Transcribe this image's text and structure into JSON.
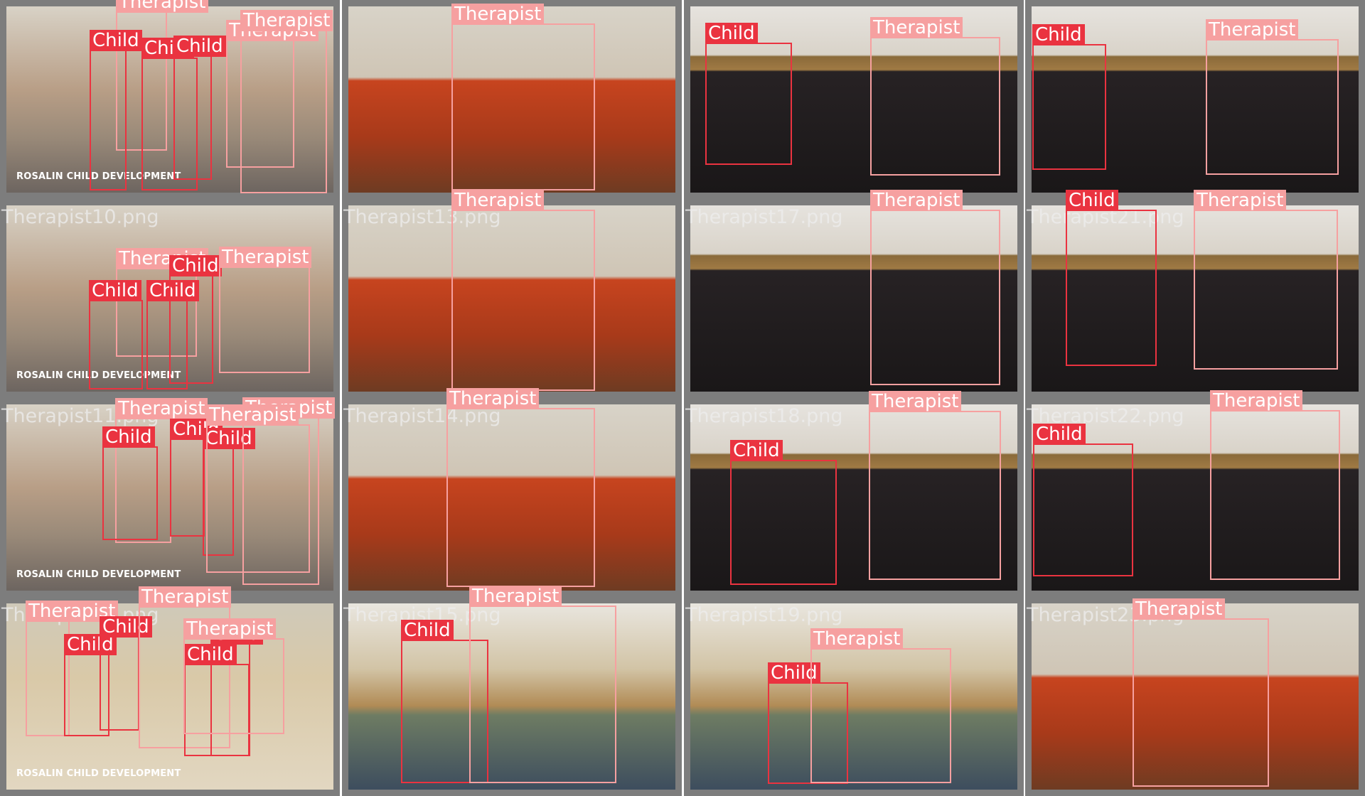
{
  "colors": {
    "background": "#ffffff",
    "tile_border": "#7d7d7d",
    "child_box": "#ea3340",
    "therapist_box": "#f6a0a0",
    "scene_indoor_room": "#b89e86",
    "scene_sofa_room": "#c7441f",
    "scene_playroom": "#272224",
    "scene_classroom": "#6e7c63",
    "scene_floor_room": "#d9c9a8"
  },
  "classes": {
    "child": "Child",
    "therapist": "Therapist"
  },
  "tiles": [
    {
      "filename": "",
      "watermark": "ROSALIN CHILD DEVELOPMENT",
      "scene": "indoor_room",
      "boxes": [
        {
          "cls": "therapist"
        },
        {
          "cls": "child"
        },
        {
          "cls": "child"
        },
        {
          "cls": "child"
        },
        {
          "cls": "therapist"
        },
        {
          "cls": "therapist"
        }
      ]
    },
    {
      "filename": "",
      "watermark": "",
      "scene": "sofa_room",
      "boxes": [
        {
          "cls": "therapist"
        }
      ]
    },
    {
      "filename": "",
      "watermark": "",
      "scene": "playroom",
      "boxes": [
        {
          "cls": "child"
        },
        {
          "cls": "therapist"
        }
      ]
    },
    {
      "filename": "",
      "watermark": "",
      "scene": "playroom",
      "boxes": [
        {
          "cls": "child"
        },
        {
          "cls": "therapist"
        }
      ]
    },
    {
      "filename": "Therapist10.png",
      "watermark": "ROSALIN CHILD DEVELOPMENT",
      "scene": "indoor_room",
      "boxes": [
        {
          "cls": "therapist"
        },
        {
          "cls": "child"
        },
        {
          "cls": "child"
        },
        {
          "cls": "child"
        },
        {
          "cls": "therapist"
        }
      ]
    },
    {
      "filename": "Therapist13.png",
      "watermark": "",
      "scene": "sofa_room",
      "boxes": [
        {
          "cls": "therapist"
        }
      ]
    },
    {
      "filename": "Therapist17.png",
      "watermark": "",
      "scene": "playroom",
      "boxes": [
        {
          "cls": "therapist"
        }
      ]
    },
    {
      "filename": "Therapist21.png",
      "watermark": "",
      "scene": "playroom",
      "boxes": [
        {
          "cls": "child"
        },
        {
          "cls": "therapist"
        }
      ]
    },
    {
      "filename": "Therapist11.png",
      "watermark": "ROSALIN CHILD DEVELOPMENT",
      "scene": "indoor_room",
      "boxes": [
        {
          "cls": "therapist"
        },
        {
          "cls": "child"
        },
        {
          "cls": "child"
        },
        {
          "cls": "child"
        },
        {
          "cls": "therapist"
        },
        {
          "cls": "therapist"
        }
      ]
    },
    {
      "filename": "Therapist14.png",
      "watermark": "",
      "scene": "sofa_room",
      "boxes": [
        {
          "cls": "therapist"
        }
      ]
    },
    {
      "filename": "Therapist18.png",
      "watermark": "",
      "scene": "playroom",
      "boxes": [
        {
          "cls": "child"
        },
        {
          "cls": "therapist"
        }
      ]
    },
    {
      "filename": "Therapist22.png",
      "watermark": "",
      "scene": "playroom",
      "boxes": [
        {
          "cls": "child"
        },
        {
          "cls": "therapist"
        }
      ]
    },
    {
      "filename": "Therapist12.png",
      "watermark": "ROSALIN CHILD DEVELOPMENT",
      "scene": "floor_room",
      "boxes": [
        {
          "cls": "therapist"
        },
        {
          "cls": "child"
        },
        {
          "cls": "child"
        },
        {
          "cls": "therapist"
        },
        {
          "cls": "child"
        },
        {
          "cls": "child"
        },
        {
          "cls": "therapist"
        }
      ]
    },
    {
      "filename": "Therapist15.png",
      "watermark": "",
      "scene": "classroom",
      "boxes": [
        {
          "cls": "child"
        },
        {
          "cls": "therapist"
        }
      ]
    },
    {
      "filename": "Therapist19.png",
      "watermark": "",
      "scene": "classroom",
      "boxes": [
        {
          "cls": "child"
        },
        {
          "cls": "therapist"
        }
      ]
    },
    {
      "filename": "Therapist23.png",
      "watermark": "",
      "scene": "sofa_room",
      "boxes": [
        {
          "cls": "therapist"
        }
      ]
    }
  ]
}
